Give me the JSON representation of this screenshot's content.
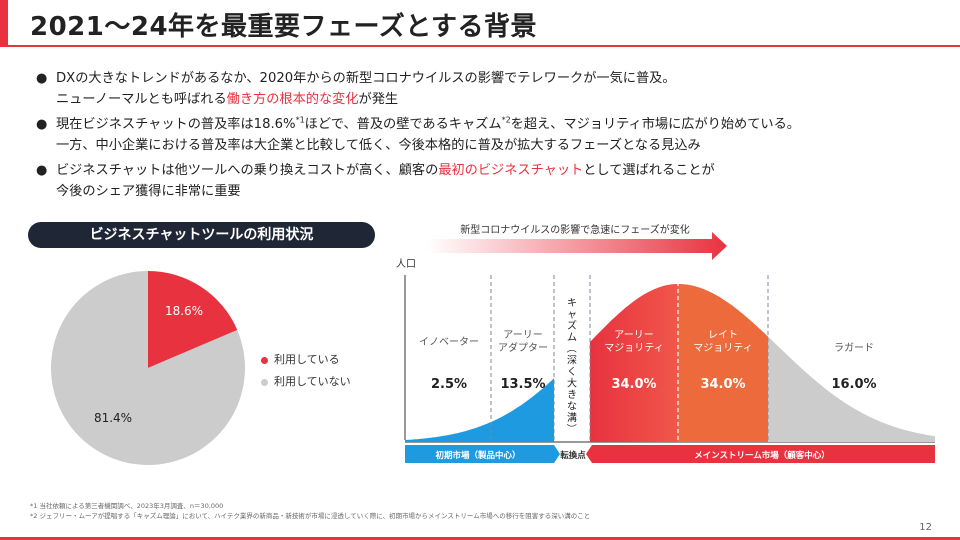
{
  "title": "2021〜24年を最重要フェーズとする背景",
  "bullets": [
    {
      "line1": "DXの大きなトレンドがあるなか、2020年からの新型コロナウイルスの影響でテレワークが一気に普及。",
      "line2_pre": "ニューノーマルとも呼ばれる",
      "line2_hl": "働き方の根本的な変化",
      "line2_post": "が発生"
    },
    {
      "line1_pre": "現在ビジネスチャットの普及率は18.6%",
      "sup1": "*1",
      "line1_mid": "ほどで、普及の壁であるキャズム",
      "sup2": "*2",
      "line1_post": "を超え、マジョリティ市場に広がり始めている。",
      "line2": "一方、中小企業における普及率は大企業と比較して低く、今後本格的に普及が拡大するフェーズとなる見込み"
    },
    {
      "line1_pre": "ビジネスチャットは他ツールへの乗り換えコストが高く、顧客の",
      "line1_hl": "最初のビジネスチャット",
      "line1_post": "として選ばれることが",
      "line2": "今後のシェア獲得に非常に重要"
    }
  ],
  "pie_title": "ビジネスチャットツールの利用状況",
  "colors": {
    "red": "#e8323f",
    "gray": "#cccccc",
    "blue": "#1e9be0",
    "orange": "#ed6a3c",
    "dark": "#1f2635"
  },
  "chart_data": [
    {
      "type": "pie",
      "title": "ビジネスチャットツールの利用状況",
      "series": [
        {
          "name": "利用している",
          "value": 18.6,
          "label": "18.6%",
          "color": "#e8323f"
        },
        {
          "name": "利用していない",
          "value": 81.4,
          "label": "81.4%",
          "color": "#cccccc"
        }
      ]
    },
    {
      "type": "area",
      "title": "新型コロナウイルスの影響で急速にフェーズが変化",
      "ylabel": "人口",
      "segments": [
        {
          "name": "イノベーター",
          "value": "2.5%",
          "color": "#1e9be0"
        },
        {
          "name": "アーリー\nアダプター",
          "value": "13.5%",
          "color": "#1e9be0"
        },
        {
          "name": "キャズム（深く大きな溝）",
          "value": "",
          "color": "#ffffff"
        },
        {
          "name": "アーリー\nマジョリティ",
          "value": "34.0%",
          "color": "#e8323f"
        },
        {
          "name": "レイト\nマジョリティ",
          "value": "34.0%",
          "color": "#ed6a3c"
        },
        {
          "name": "ラガード",
          "value": "16.0%",
          "color": "#cccccc"
        }
      ],
      "markets": [
        {
          "label": "初期市場（製品中心）",
          "color": "#1e9be0"
        },
        {
          "label": "転換点",
          "color": "#ffffff"
        },
        {
          "label": "メインストリーム市場（顧客中心）",
          "color": "#e8323f"
        }
      ]
    }
  ],
  "footnotes": [
    "*1 当社依頼による第三者機関調べ、2023年3月調査、n＝30,000",
    "*2 ジェフリー・ムーアが提唱する「キャズム理論」において、ハイテク業界の新商品・新技術が市場に浸透していく際に、初期市場からメインストリーム市場への移行を阻害する深い溝のこと"
  ],
  "page_number": "12"
}
